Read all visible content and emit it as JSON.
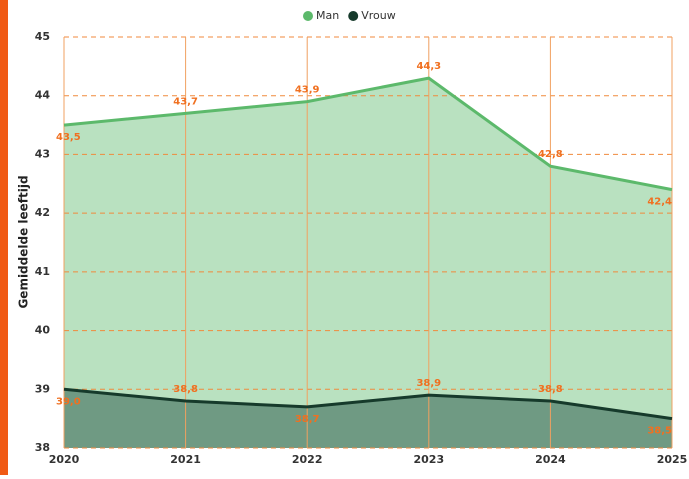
{
  "chart_data": {
    "type": "area",
    "y_label": "Gemiddelde leeftijd",
    "legend": "top",
    "grid": true,
    "x": [
      2020,
      2021,
      2022,
      2023,
      2024,
      2025
    ],
    "xlim": [
      2020,
      2025
    ],
    "xticks": [
      2020,
      2021,
      2022,
      2023,
      2024,
      2025
    ],
    "ylim": [
      38,
      45
    ],
    "yticks": [
      38,
      39,
      40,
      41,
      42,
      43,
      44,
      45
    ],
    "series": [
      {
        "name": "Man",
        "color": "#5cb96b",
        "fill": "#b9e1c0",
        "values": [
          43.5,
          43.7,
          43.9,
          44.3,
          42.8,
          42.4
        ],
        "value_labels": [
          "43,5",
          "43,7",
          "43,9",
          "44,3",
          "42,8",
          "42,4"
        ]
      },
      {
        "name": "Vrouw",
        "color": "#163a2b",
        "fill": "#6f9a83",
        "values": [
          39.0,
          38.8,
          38.7,
          38.9,
          38.8,
          38.5
        ],
        "value_labels": [
          "39,0",
          "38,8",
          "38,7",
          "38,9",
          "38,8",
          "38,5"
        ]
      }
    ]
  }
}
